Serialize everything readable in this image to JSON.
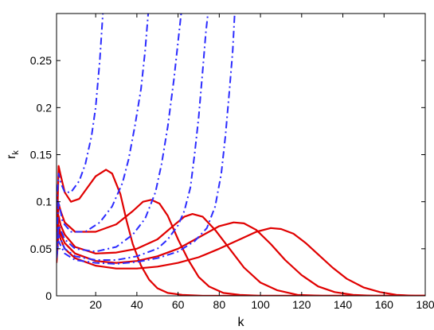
{
  "chart_data": {
    "type": "line",
    "xlabel": "k",
    "ylabel": "r",
    "ylabel_subscript": "k",
    "xlim": [
      1,
      180
    ],
    "ylim": [
      0,
      0.3
    ],
    "xticks": [
      "20",
      "40",
      "60",
      "80",
      "100",
      "120",
      "140",
      "160",
      "180"
    ],
    "yticks": [
      "0",
      "0.05",
      "0.1",
      "0.15",
      "0.2",
      "0.25"
    ],
    "grid": false,
    "legend": "none",
    "colors": {
      "solid": "#e00000",
      "dashdot": "#2c2cff"
    },
    "series": [
      {
        "style": "solid",
        "color": "#e00000",
        "points": [
          [
            1,
            0.05
          ],
          [
            2,
            0.138
          ],
          [
            3,
            0.128
          ],
          [
            5,
            0.11
          ],
          [
            8,
            0.1
          ],
          [
            12,
            0.103
          ],
          [
            16,
            0.115
          ],
          [
            20,
            0.127
          ],
          [
            25,
            0.134
          ],
          [
            28,
            0.13
          ],
          [
            32,
            0.108
          ],
          [
            35,
            0.08
          ],
          [
            38,
            0.055
          ],
          [
            42,
            0.032
          ],
          [
            46,
            0.017
          ],
          [
            50,
            0.008
          ],
          [
            55,
            0.003
          ],
          [
            62,
            0.001
          ],
          [
            72,
            0.0
          ],
          [
            180,
            0.0
          ]
        ]
      },
      {
        "style": "solid",
        "color": "#e00000",
        "points": [
          [
            1,
            0.045
          ],
          [
            2,
            0.098
          ],
          [
            3,
            0.09
          ],
          [
            5,
            0.078
          ],
          [
            10,
            0.068
          ],
          [
            20,
            0.068
          ],
          [
            30,
            0.076
          ],
          [
            38,
            0.09
          ],
          [
            43,
            0.1
          ],
          [
            47,
            0.102
          ],
          [
            51,
            0.098
          ],
          [
            55,
            0.085
          ],
          [
            60,
            0.06
          ],
          [
            65,
            0.038
          ],
          [
            70,
            0.02
          ],
          [
            75,
            0.01
          ],
          [
            82,
            0.003
          ],
          [
            90,
            0.001
          ],
          [
            100,
            0.0
          ],
          [
            180,
            0.0
          ]
        ]
      },
      {
        "style": "solid",
        "color": "#e00000",
        "points": [
          [
            1,
            0.04
          ],
          [
            2,
            0.085
          ],
          [
            3,
            0.075
          ],
          [
            5,
            0.065
          ],
          [
            10,
            0.052
          ],
          [
            20,
            0.045
          ],
          [
            30,
            0.046
          ],
          [
            40,
            0.05
          ],
          [
            50,
            0.06
          ],
          [
            58,
            0.075
          ],
          [
            63,
            0.084
          ],
          [
            67,
            0.087
          ],
          [
            72,
            0.084
          ],
          [
            78,
            0.07
          ],
          [
            85,
            0.05
          ],
          [
            92,
            0.03
          ],
          [
            100,
            0.014
          ],
          [
            108,
            0.006
          ],
          [
            118,
            0.001
          ],
          [
            130,
            0.0
          ],
          [
            180,
            0.0
          ]
        ]
      },
      {
        "style": "solid",
        "color": "#e00000",
        "points": [
          [
            1,
            0.038
          ],
          [
            2,
            0.075
          ],
          [
            3,
            0.066
          ],
          [
            5,
            0.056
          ],
          [
            10,
            0.045
          ],
          [
            20,
            0.037
          ],
          [
            30,
            0.035
          ],
          [
            40,
            0.037
          ],
          [
            50,
            0.042
          ],
          [
            60,
            0.05
          ],
          [
            70,
            0.062
          ],
          [
            80,
            0.074
          ],
          [
            87,
            0.078
          ],
          [
            92,
            0.077
          ],
          [
            98,
            0.07
          ],
          [
            105,
            0.055
          ],
          [
            112,
            0.038
          ],
          [
            120,
            0.022
          ],
          [
            128,
            0.01
          ],
          [
            136,
            0.004
          ],
          [
            145,
            0.001
          ],
          [
            155,
            0.0
          ],
          [
            180,
            0.0
          ]
        ]
      },
      {
        "style": "solid",
        "color": "#e00000",
        "points": [
          [
            1,
            0.035
          ],
          [
            2,
            0.068
          ],
          [
            3,
            0.06
          ],
          [
            5,
            0.05
          ],
          [
            10,
            0.04
          ],
          [
            20,
            0.032
          ],
          [
            30,
            0.029
          ],
          [
            40,
            0.029
          ],
          [
            50,
            0.031
          ],
          [
            60,
            0.035
          ],
          [
            70,
            0.041
          ],
          [
            80,
            0.05
          ],
          [
            90,
            0.06
          ],
          [
            98,
            0.068
          ],
          [
            105,
            0.072
          ],
          [
            110,
            0.071
          ],
          [
            116,
            0.066
          ],
          [
            122,
            0.056
          ],
          [
            128,
            0.044
          ],
          [
            135,
            0.03
          ],
          [
            142,
            0.018
          ],
          [
            150,
            0.009
          ],
          [
            158,
            0.004
          ],
          [
            166,
            0.001
          ],
          [
            175,
            0.0
          ],
          [
            180,
            0.0
          ]
        ]
      },
      {
        "style": "dashdot",
        "color": "#2c2cff",
        "points": [
          [
            1,
            0.095
          ],
          [
            2,
            0.13
          ],
          [
            3,
            0.12
          ],
          [
            5,
            0.11
          ],
          [
            8,
            0.11
          ],
          [
            12,
            0.122
          ],
          [
            15,
            0.14
          ],
          [
            18,
            0.17
          ],
          [
            20,
            0.2
          ],
          [
            22,
            0.25
          ],
          [
            23.5,
            0.3
          ]
        ]
      },
      {
        "style": "dashdot",
        "color": "#2c2cff",
        "points": [
          [
            1,
            0.06
          ],
          [
            2,
            0.1
          ],
          [
            4,
            0.078
          ],
          [
            8,
            0.068
          ],
          [
            15,
            0.068
          ],
          [
            22,
            0.078
          ],
          [
            28,
            0.095
          ],
          [
            33,
            0.12
          ],
          [
            36,
            0.145
          ],
          [
            39,
            0.18
          ],
          [
            42,
            0.22
          ],
          [
            44,
            0.26
          ],
          [
            45.5,
            0.3
          ]
        ]
      },
      {
        "style": "dashdot",
        "color": "#2c2cff",
        "points": [
          [
            1,
            0.05
          ],
          [
            2,
            0.075
          ],
          [
            5,
            0.06
          ],
          [
            10,
            0.05
          ],
          [
            20,
            0.047
          ],
          [
            30,
            0.052
          ],
          [
            38,
            0.065
          ],
          [
            44,
            0.082
          ],
          [
            49,
            0.11
          ],
          [
            52,
            0.14
          ],
          [
            55,
            0.18
          ],
          [
            58,
            0.23
          ],
          [
            60,
            0.27
          ],
          [
            61.5,
            0.3
          ]
        ]
      },
      {
        "style": "dashdot",
        "color": "#2c2cff",
        "points": [
          [
            1,
            0.045
          ],
          [
            2,
            0.065
          ],
          [
            5,
            0.05
          ],
          [
            10,
            0.042
          ],
          [
            20,
            0.038
          ],
          [
            30,
            0.038
          ],
          [
            40,
            0.042
          ],
          [
            50,
            0.05
          ],
          [
            55,
            0.06
          ],
          [
            60,
            0.075
          ],
          [
            63,
            0.09
          ],
          [
            66,
            0.115
          ],
          [
            68,
            0.15
          ],
          [
            70,
            0.19
          ],
          [
            72,
            0.24
          ],
          [
            73.5,
            0.28
          ],
          [
            74.5,
            0.3
          ]
        ]
      },
      {
        "style": "dashdot",
        "color": "#2c2cff",
        "points": [
          [
            1,
            0.04
          ],
          [
            2,
            0.058
          ],
          [
            5,
            0.045
          ],
          [
            10,
            0.038
          ],
          [
            20,
            0.035
          ],
          [
            30,
            0.034
          ],
          [
            40,
            0.036
          ],
          [
            50,
            0.04
          ],
          [
            60,
            0.047
          ],
          [
            68,
            0.058
          ],
          [
            74,
            0.072
          ],
          [
            78,
            0.095
          ],
          [
            81,
            0.13
          ],
          [
            83,
            0.17
          ],
          [
            85,
            0.22
          ],
          [
            86.5,
            0.26
          ],
          [
            87.5,
            0.3
          ]
        ]
      }
    ]
  }
}
